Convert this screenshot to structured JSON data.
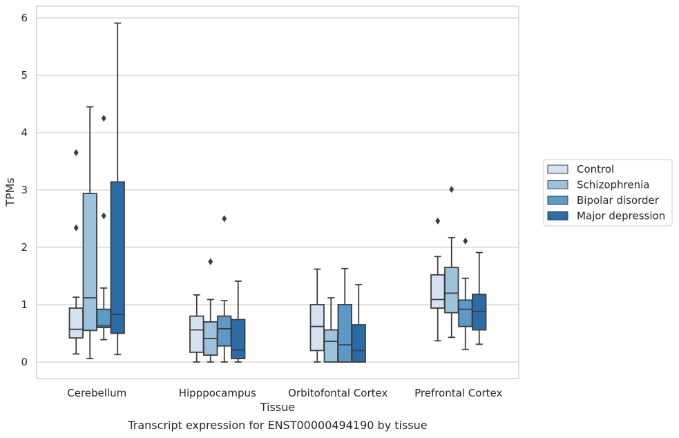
{
  "chart_data": {
    "type": "box",
    "xlabel": "Tissue",
    "ylabel": "TPMs",
    "caption": "Transcript expression for ENST00000494190 by tissue",
    "ylim": [
      -0.3,
      6.2
    ],
    "yticks": [
      "0",
      "1",
      "2",
      "3",
      "4",
      "5",
      "6"
    ],
    "grid": "horizontal",
    "legend_position": "right",
    "categories": [
      "Cerebellum",
      "Hipppocampus",
      "Orbitofontal Cortex",
      "Prefrontal Cortex"
    ],
    "series": [
      {
        "name": "Control",
        "color": "#d4e2f2",
        "boxes": [
          {
            "whisker_low": 0.14,
            "q1": 0.42,
            "median": 0.57,
            "q3": 0.94,
            "whisker_high": 1.13,
            "outliers": [
              2.34,
              3.65
            ]
          },
          {
            "whisker_low": 0.0,
            "q1": 0.17,
            "median": 0.56,
            "q3": 0.8,
            "whisker_high": 1.17,
            "outliers": []
          },
          {
            "whisker_low": 0.0,
            "q1": 0.2,
            "median": 0.62,
            "q3": 1.0,
            "whisker_high": 1.62,
            "outliers": []
          },
          {
            "whisker_low": 0.37,
            "q1": 0.94,
            "median": 1.09,
            "q3": 1.52,
            "whisker_high": 1.84,
            "outliers": [
              2.46
            ]
          }
        ]
      },
      {
        "name": "Schizophrenia",
        "color": "#9cc3db",
        "boxes": [
          {
            "whisker_low": 0.06,
            "q1": 0.55,
            "median": 1.12,
            "q3": 2.94,
            "whisker_high": 4.45,
            "outliers": []
          },
          {
            "whisker_low": 0.0,
            "q1": 0.12,
            "median": 0.41,
            "q3": 0.7,
            "whisker_high": 1.09,
            "outliers": [
              1.75
            ]
          },
          {
            "whisker_low": 0.0,
            "q1": 0.0,
            "median": 0.36,
            "q3": 0.56,
            "whisker_high": 1.12,
            "outliers": []
          },
          {
            "whisker_low": 0.43,
            "q1": 0.86,
            "median": 1.2,
            "q3": 1.65,
            "whisker_high": 2.17,
            "outliers": [
              3.01
            ]
          }
        ]
      },
      {
        "name": "Bipolar disorder",
        "color": "#5b9ac8",
        "boxes": [
          {
            "whisker_low": 0.39,
            "q1": 0.6,
            "median": 0.63,
            "q3": 0.92,
            "whisker_high": 1.29,
            "outliers": [
              2.55,
              4.25
            ]
          },
          {
            "whisker_low": 0.0,
            "q1": 0.28,
            "median": 0.58,
            "q3": 0.8,
            "whisker_high": 1.07,
            "outliers": [
              2.5
            ]
          },
          {
            "whisker_low": 0.0,
            "q1": 0.0,
            "median": 0.3,
            "q3": 1.0,
            "whisker_high": 1.63,
            "outliers": []
          },
          {
            "whisker_low": 0.22,
            "q1": 0.62,
            "median": 0.92,
            "q3": 1.08,
            "whisker_high": 1.46,
            "outliers": [
              2.11
            ]
          }
        ]
      },
      {
        "name": "Major depression",
        "color": "#2b6ca7",
        "boxes": [
          {
            "whisker_low": 0.13,
            "q1": 0.5,
            "median": 0.83,
            "q3": 3.14,
            "whisker_high": 5.91,
            "outliers": []
          },
          {
            "whisker_low": 0.0,
            "q1": 0.06,
            "median": 0.21,
            "q3": 0.74,
            "whisker_high": 1.41,
            "outliers": []
          },
          {
            "whisker_low": 0.0,
            "q1": 0.0,
            "median": 0.2,
            "q3": 0.65,
            "whisker_high": 1.35,
            "outliers": []
          },
          {
            "whisker_low": 0.31,
            "q1": 0.56,
            "median": 0.88,
            "q3": 1.18,
            "whisker_high": 1.91,
            "outliers": []
          }
        ]
      }
    ]
  }
}
